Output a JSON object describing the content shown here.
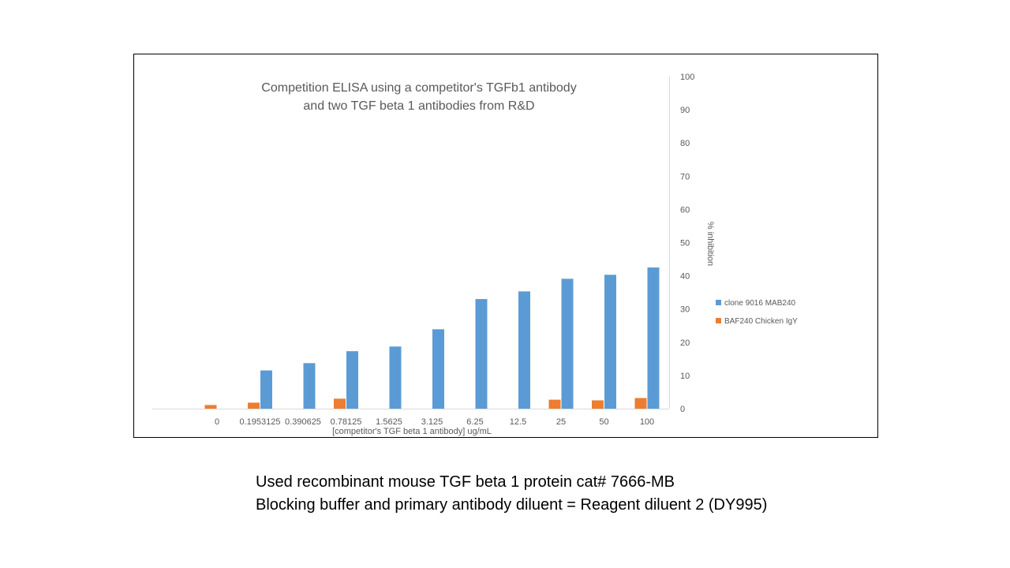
{
  "chart_data": {
    "type": "bar",
    "title_lines": [
      "Competition ELISA using a competitor's TGFb1 antibody",
      "and two TGF beta 1 antibodies from R&D"
    ],
    "xlabel": "[competitor's TGF beta 1 antibody] ug/mL",
    "ylabel": "% inhibition",
    "categories": [
      "0",
      "0.1953125",
      "0.390625",
      "0.78125",
      "1.5625",
      "3.125",
      "6.25",
      "12.5",
      "25",
      "50",
      "100"
    ],
    "ylim": [
      0,
      100
    ],
    "yticks": [
      0,
      10,
      20,
      30,
      40,
      50,
      60,
      70,
      80,
      90,
      100
    ],
    "y_axis_side": "right",
    "grid": false,
    "legend_position": "right",
    "series": [
      {
        "name": "clone 9016 MAB240",
        "color": "#5b9bd5",
        "values": [
          0,
          11.5,
          13.7,
          17.3,
          18.7,
          23.9,
          33,
          35.3,
          39.1,
          40.3,
          42.5
        ]
      },
      {
        "name": "BAF240 Chicken IgY",
        "color": "#ed7d31",
        "values": [
          1.1,
          1.8,
          0,
          3,
          0,
          0,
          0,
          0,
          2.7,
          2.5,
          3.2
        ]
      }
    ]
  },
  "notes": [
    "Used recombinant mouse TGF beta 1 protein cat# 7666-MB",
    "Blocking buffer and primary antibody diluent = Reagent diluent 2 (DY995)"
  ]
}
